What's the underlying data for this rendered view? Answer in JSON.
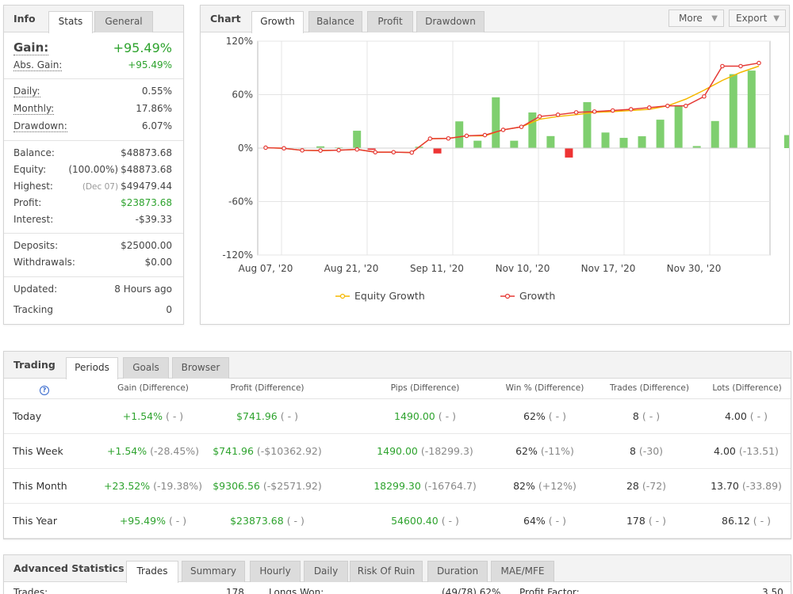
{
  "info": {
    "title": "Info",
    "tabs": [
      "Stats",
      "General"
    ],
    "gain_label": "Gain:",
    "gain_value": "+95.49%",
    "abs_gain_label": "Abs. Gain:",
    "abs_gain_value": "+95.49%",
    "daily_label": "Daily:",
    "daily_value": "0.55%",
    "monthly_label": "Monthly:",
    "monthly_value": "17.86%",
    "drawdown_label": "Drawdown:",
    "drawdown_value": "6.07%",
    "balance_label": "Balance:",
    "balance_value": "$48873.68",
    "equity_label": "Equity:",
    "equity_pct": "(100.00%)",
    "equity_value": "$48873.68",
    "highest_label": "Highest:",
    "highest_date": "(Dec 07)",
    "highest_value": "$49479.44",
    "profit_label": "Profit:",
    "profit_value": "$23873.68",
    "interest_label": "Interest:",
    "interest_value": "-$39.33",
    "deposits_label": "Deposits:",
    "deposits_value": "$25000.00",
    "withdrawals_label": "Withdrawals:",
    "withdrawals_value": "$0.00",
    "updated_label": "Updated:",
    "updated_value": "8 Hours ago",
    "tracking_label": "Tracking",
    "tracking_value": "0"
  },
  "chart_panel": {
    "title": "Chart",
    "tabs": [
      "Growth",
      "Balance",
      "Profit",
      "Drawdown"
    ],
    "more_label": "More",
    "export_label": "Export"
  },
  "chart_data": {
    "type": "line",
    "x_tick_labels": [
      "Aug 07, '20",
      "Aug 21, '20",
      "Sep 11, '20",
      "Nov 10, '20",
      "Nov 17, '20",
      "Nov 30, '20"
    ],
    "y_tick_labels": [
      "120%",
      "60%",
      "0%",
      "-60%",
      "-120%"
    ],
    "ylim": [
      -120,
      120
    ],
    "grid": true,
    "legend_position": "bottom",
    "colors": {
      "equity": "#f5b800",
      "growth": "#e53935",
      "bar_pos": "#7fcf6f",
      "bar_neg": "#ee3333"
    },
    "series": [
      {
        "name": "Equity Growth",
        "values": [
          0.5,
          -0.2,
          -2.5,
          -2.8,
          -2.3,
          -1.5,
          -4.6,
          -4.6,
          -5.0,
          10.6,
          10.9,
          13.8,
          13.8,
          20.5,
          23.9,
          32.4,
          35.5,
          37.5,
          40.1,
          41.0,
          42.2,
          43.6,
          47.4,
          55.0,
          65.0,
          76.0,
          85.0,
          92.0
        ]
      },
      {
        "name": "Growth",
        "values": [
          0.5,
          -0.2,
          -2.5,
          -2.8,
          -2.3,
          -1.5,
          -4.6,
          -4.6,
          -5.0,
          10.6,
          10.9,
          13.8,
          14.6,
          20.5,
          23.9,
          35.5,
          37.5,
          40.1,
          41.0,
          42.2,
          43.6,
          45.5,
          47.4,
          47.4,
          58.0,
          92.0,
          92.0,
          95.5
        ]
      }
    ],
    "bars": [
      {
        "pos": 0,
        "value": 0.5
      },
      {
        "pos": 1,
        "value": 0.3
      },
      {
        "pos": 2,
        "value": 0.3
      },
      {
        "pos": 3,
        "value": 2.0
      },
      {
        "pos": 4,
        "value": 0.8
      },
      {
        "pos": 5,
        "value": 19.5
      },
      {
        "pos": 5.8,
        "value": -2.0
      },
      {
        "pos": 8.4,
        "value": 1.5
      },
      {
        "pos": 9.4,
        "value": -6.0
      },
      {
        "pos": 10.6,
        "value": 30.0
      },
      {
        "pos": 11.6,
        "value": 8.3
      },
      {
        "pos": 12.6,
        "value": 57.0
      },
      {
        "pos": 13.6,
        "value": 8.3
      },
      {
        "pos": 14.6,
        "value": 40.0
      },
      {
        "pos": 15.6,
        "value": 13.5
      },
      {
        "pos": 16.6,
        "value": -10.6
      },
      {
        "pos": 17.6,
        "value": 51.6
      },
      {
        "pos": 18.6,
        "value": 17.5
      },
      {
        "pos": 19.6,
        "value": 11.5
      },
      {
        "pos": 20.6,
        "value": 13.3
      },
      {
        "pos": 21.6,
        "value": 31.9
      },
      {
        "pos": 22.6,
        "value": 48.0
      },
      {
        "pos": 23.6,
        "value": 2.3
      },
      {
        "pos": 24.6,
        "value": 30.4
      },
      {
        "pos": 25.6,
        "value": 83.0
      },
      {
        "pos": 26.6,
        "value": 87.0
      },
      {
        "pos": 28.6,
        "value": 14.6
      }
    ]
  },
  "trading": {
    "title": "Trading",
    "tabs": [
      "Periods",
      "Goals",
      "Browser"
    ],
    "help_icon": "?",
    "headers": [
      "Gain (Difference)",
      "Profit (Difference)",
      "Pips (Difference)",
      "Win % (Difference)",
      "Trades (Difference)",
      "Lots (Difference)"
    ],
    "rows": [
      {
        "label": "Today",
        "gain": "+1.54%",
        "gain_d": "( - )",
        "profit": "$741.96",
        "profit_d": "( - )",
        "pips": "1490.00",
        "pips_d": "( - )",
        "win": "62%",
        "win_d": "( - )",
        "trades": "8",
        "trades_d": "( - )",
        "lots": "4.00",
        "lots_d": "( - )"
      },
      {
        "label": "This Week",
        "gain": "+1.54%",
        "gain_d": "(-28.45%)",
        "profit": "$741.96",
        "profit_d": "(-$10362.92)",
        "pips": "1490.00",
        "pips_d": "(-18299.3)",
        "win": "62%",
        "win_d": "(-11%)",
        "trades": "8",
        "trades_d": "(-30)",
        "lots": "4.00",
        "lots_d": "(-13.51)"
      },
      {
        "label": "This Month",
        "gain": "+23.52%",
        "gain_d": "(-19.38%)",
        "profit": "$9306.56",
        "profit_d": "(-$2571.92)",
        "pips": "18299.30",
        "pips_d": "(-16764.7)",
        "win": "82%",
        "win_d": "(+12%)",
        "trades": "28",
        "trades_d": "(-72)",
        "lots": "13.70",
        "lots_d": "(-33.89)"
      },
      {
        "label": "This Year",
        "gain": "+95.49%",
        "gain_d": "( - )",
        "profit": "$23873.68",
        "profit_d": "( - )",
        "pips": "54600.40",
        "pips_d": "( - )",
        "win": "64%",
        "win_d": "( - )",
        "trades": "178",
        "trades_d": "( - )",
        "lots": "86.12",
        "lots_d": "( - )"
      }
    ]
  },
  "advanced": {
    "title": "Advanced Statistics",
    "tabs": [
      "Trades",
      "Summary",
      "Hourly",
      "Daily",
      "Risk Of Ruin",
      "Duration",
      "MAE/MFE"
    ],
    "trades_label": "Trades:",
    "trades_value": "178",
    "longs_won_label": "Longs Won:",
    "longs_won_value": "(49/78) 62%",
    "profit_factor_label": "Profit Factor:",
    "profit_factor_value": "3.50"
  }
}
